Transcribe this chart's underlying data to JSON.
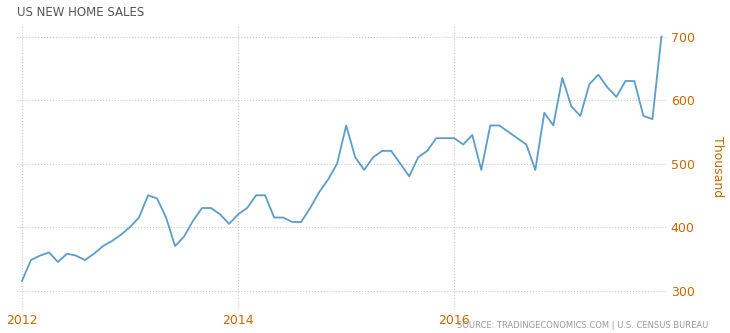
{
  "title": "US NEW HOME SALES",
  "ylabel": "Thousand",
  "source": "SOURCE: TRADINGECONOMICS.COM | U.S. CENSUS BUREAU",
  "ylim": [
    270,
    720
  ],
  "yticks": [
    300,
    400,
    500,
    600,
    700
  ],
  "background_color": "#ffffff",
  "grid_color": "#c8c8c8",
  "line_color": "#5b9dc9",
  "title_color": "#555555",
  "source_color": "#999999",
  "axis_label_color": "#cc6600",
  "x_labels": [
    "2012",
    "2014",
    "2016"
  ],
  "data": [
    [
      0,
      315
    ],
    [
      1,
      348
    ],
    [
      2,
      355
    ],
    [
      3,
      360
    ],
    [
      4,
      345
    ],
    [
      5,
      358
    ],
    [
      6,
      355
    ],
    [
      7,
      348
    ],
    [
      8,
      358
    ],
    [
      9,
      370
    ],
    [
      10,
      378
    ],
    [
      11,
      388
    ],
    [
      12,
      400
    ],
    [
      13,
      415
    ],
    [
      14,
      450
    ],
    [
      15,
      445
    ],
    [
      16,
      415
    ],
    [
      17,
      370
    ],
    [
      18,
      385
    ],
    [
      19,
      410
    ],
    [
      20,
      430
    ],
    [
      21,
      430
    ],
    [
      22,
      420
    ],
    [
      23,
      405
    ],
    [
      24,
      420
    ],
    [
      25,
      430
    ],
    [
      26,
      450
    ],
    [
      27,
      450
    ],
    [
      28,
      415
    ],
    [
      29,
      415
    ],
    [
      30,
      408
    ],
    [
      31,
      408
    ],
    [
      32,
      430
    ],
    [
      33,
      455
    ],
    [
      34,
      475
    ],
    [
      35,
      500
    ],
    [
      36,
      560
    ],
    [
      37,
      510
    ],
    [
      38,
      490
    ],
    [
      39,
      510
    ],
    [
      40,
      520
    ],
    [
      41,
      520
    ],
    [
      42,
      500
    ],
    [
      43,
      480
    ],
    [
      44,
      510
    ],
    [
      45,
      520
    ],
    [
      46,
      540
    ],
    [
      47,
      540
    ],
    [
      48,
      540
    ],
    [
      49,
      530
    ],
    [
      50,
      545
    ],
    [
      51,
      490
    ],
    [
      52,
      560
    ],
    [
      53,
      560
    ],
    [
      54,
      550
    ],
    [
      55,
      540
    ],
    [
      56,
      530
    ],
    [
      57,
      490
    ],
    [
      58,
      580
    ],
    [
      59,
      560
    ],
    [
      60,
      635
    ],
    [
      61,
      590
    ],
    [
      62,
      575
    ],
    [
      63,
      625
    ],
    [
      64,
      640
    ],
    [
      65,
      620
    ],
    [
      66,
      605
    ],
    [
      67,
      630
    ],
    [
      68,
      630
    ],
    [
      69,
      575
    ],
    [
      70,
      570
    ],
    [
      71,
      700
    ]
  ]
}
